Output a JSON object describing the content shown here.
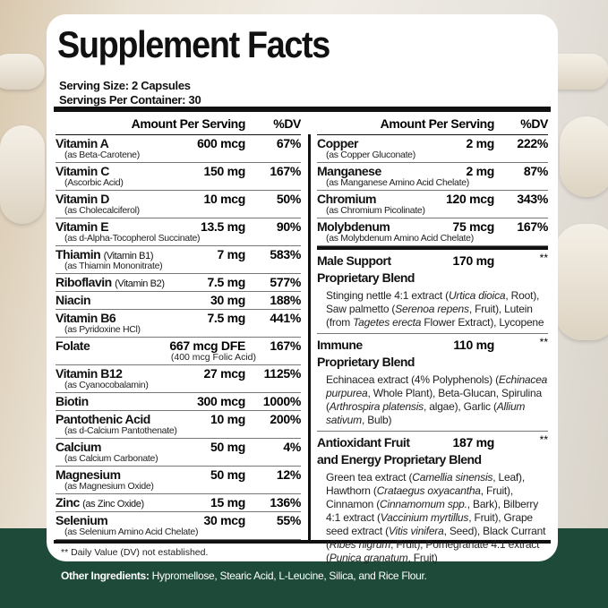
{
  "title": "Supplement Facts",
  "serving_size": "Serving Size: 2 Capsules",
  "servings_per_container": "Servings Per Container: 30",
  "header": {
    "amount": "Amount Per Serving",
    "dv": "%DV"
  },
  "left_rows": [
    {
      "name": "Vitamin A",
      "sub": "(as Beta-Carotene)",
      "amount": "600 mcg",
      "dv": "67%"
    },
    {
      "name": "Vitamin C",
      "sub": "(Ascorbic Acid)",
      "amount": "150 mg",
      "dv": "167%"
    },
    {
      "name": "Vitamin D",
      "sub": "(as Cholecalciferol)",
      "amount": "10 mcg",
      "dv": "50%"
    },
    {
      "name": "Vitamin E",
      "sub": "(as d-Alpha-Tocopherol Succinate)",
      "amount": "13.5 mg",
      "dv": "90%"
    },
    {
      "name": "Thiamin",
      "note": "(Vitamin B1)",
      "sub": "(as Thiamin Mononitrate)",
      "amount": "7 mg",
      "dv": "583%"
    },
    {
      "name": "Riboflavin",
      "note": "(Vitamin B2)",
      "amount": "7.5 mg",
      "dv": "577%"
    },
    {
      "name": "Niacin",
      "amount": "30 mg",
      "dv": "188%"
    },
    {
      "name": "Vitamin B6",
      "sub": "(as Pyridoxine HCl)",
      "amount": "7.5 mg",
      "dv": "441%"
    },
    {
      "name": "Folate",
      "amount": "667 mcg DFE",
      "amount_sub": "(400 mcg Folic Acid)",
      "dv": "167%"
    },
    {
      "name": "Vitamin B12",
      "sub": "(as Cyanocobalamin)",
      "amount": "27 mcg",
      "dv": "1125%"
    },
    {
      "name": "Biotin",
      "amount": "300 mcg",
      "dv": "1000%"
    },
    {
      "name": "Pantothenic Acid",
      "sub": "(as d-Calcium Pantothenate)",
      "amount": "10 mg",
      "dv": "200%"
    },
    {
      "name": "Calcium",
      "sub": "(as Calcium Carbonate)",
      "amount": "50 mg",
      "dv": "4%"
    },
    {
      "name": "Magnesium",
      "sub": "(as Magnesium Oxide)",
      "amount": "50 mg",
      "dv": "12%"
    },
    {
      "name": "Zinc",
      "note": "(as Zinc Oxide)",
      "amount": "15 mg",
      "dv": "136%"
    },
    {
      "name": "Selenium",
      "sub": "(as Selenium Amino Acid Chelate)",
      "amount": "30 mcg",
      "dv": "55%"
    }
  ],
  "right_rows": [
    {
      "name": "Copper",
      "sub": "(as Copper Gluconate)",
      "amount": "2 mg",
      "dv": "222%"
    },
    {
      "name": "Manganese",
      "sub": "(as Manganese Amino Acid Chelate)",
      "amount": "2 mg",
      "dv": "87%"
    },
    {
      "name": "Chromium",
      "sub": "(as Chromium Picolinate)",
      "amount": "120 mcg",
      "dv": "343%"
    },
    {
      "name": "Molybdenum",
      "sub": "(as Molybdenum Amino Acid Chelate)",
      "amount": "75 mcg",
      "dv": "167%"
    }
  ],
  "blends": [
    {
      "title": [
        "Male Support",
        "Proprietary Blend"
      ],
      "amount": "170 mg",
      "dv": "**",
      "ingredients": [
        [
          "Stinging nettle 4:1 extract (",
          0
        ],
        [
          "Urtica dioica",
          1
        ],
        [
          ", Root), Saw palmetto (",
          0
        ],
        [
          "Serenoa repens",
          1
        ],
        [
          ", Fruit), Lutein (from ",
          0
        ],
        [
          "Tagetes erecta",
          1
        ],
        [
          " Flower Extract), Lycopene",
          0
        ]
      ]
    },
    {
      "title": [
        "Immune",
        "Proprietary Blend"
      ],
      "amount": "110 mg",
      "dv": "**",
      "ingredients": [
        [
          "Echinacea extract (4% Polyphenols) (",
          0
        ],
        [
          "Echinacea purpurea",
          1
        ],
        [
          ", Whole Plant), Beta-Glucan, Spirulina (",
          0
        ],
        [
          "Arthrospira platensis",
          1
        ],
        [
          ", algae), Garlic (",
          0
        ],
        [
          "Allium sativum",
          1
        ],
        [
          ", Bulb)",
          0
        ]
      ]
    },
    {
      "title": [
        "Antioxidant Fruit",
        "and Energy Proprietary Blend"
      ],
      "amount": "187 mg",
      "dv": "**",
      "ingredients": [
        [
          "Green tea extract (",
          0
        ],
        [
          "Camellia sinensis",
          1
        ],
        [
          ", Leaf), Hawthorn (",
          0
        ],
        [
          "Crataegus oxyacantha",
          1
        ],
        [
          ", Fruit), Cinnamon (",
          0
        ],
        [
          "Cinnamomum spp.",
          1
        ],
        [
          ", Bark), Bilberry 4:1 extract (",
          0
        ],
        [
          "Vaccinium myrtillus",
          1
        ],
        [
          ", Fruit), Grape seed extract (",
          0
        ],
        [
          "Vitis vinifera",
          1
        ],
        [
          ", Seed), Black Currant (",
          0
        ],
        [
          "Ribes nigrum",
          1
        ],
        [
          ", Fruit), Pomegranate 4:1 extract (",
          0
        ],
        [
          "Punica granatum",
          1
        ],
        [
          ", Fruit)",
          0
        ]
      ]
    }
  ],
  "footnote": "** Daily Value (DV) not established.",
  "other_ingredients": {
    "label": "Other Ingredients:",
    "text": " Hypromellose, Stearic Acid, L-Leucine, Silica, and Rice Flour."
  },
  "colors": {
    "band": "#1e4a39",
    "text": "#111111"
  }
}
